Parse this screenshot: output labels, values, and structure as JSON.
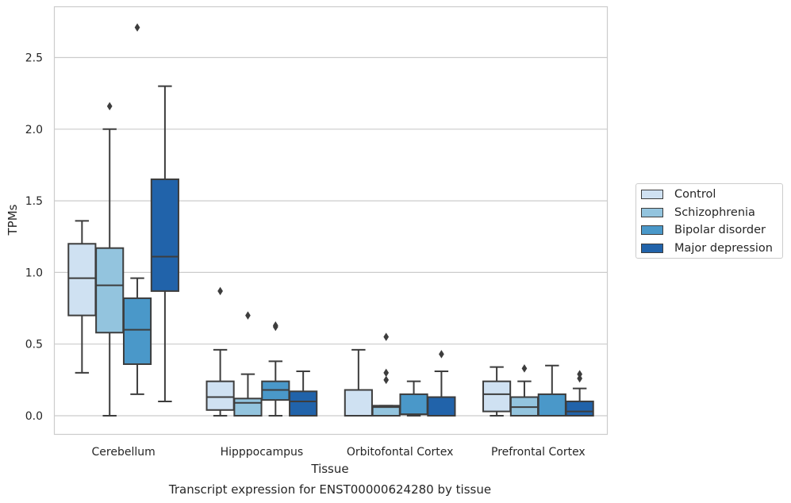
{
  "chart_data": {
    "type": "box",
    "title": "",
    "caption": "Transcript expression for ENST00000624280 by tissue",
    "xlabel": "Tissue",
    "ylabel": "TPMs",
    "ylim": [
      -0.13,
      2.86
    ],
    "yticks": [
      "0.0",
      "0.5",
      "1.0",
      "1.5",
      "2.0",
      "2.5"
    ],
    "grid": "horizontal",
    "legend_position": "right",
    "categories": [
      "Cerebellum",
      "Hipppocampus",
      "Orbitofontal Cortex",
      "Prefrontal Cortex"
    ],
    "series": [
      {
        "name": "Control",
        "color": "#cfe1f2",
        "boxes": [
          {
            "whislo": 0.3,
            "q1": 0.7,
            "med": 0.96,
            "q3": 1.2,
            "whishi": 1.36,
            "fliers": []
          },
          {
            "whislo": 0.0,
            "q1": 0.04,
            "med": 0.13,
            "q3": 0.24,
            "whishi": 0.46,
            "fliers": [
              0.87
            ]
          },
          {
            "whislo": 0.0,
            "q1": 0.0,
            "med": 0.0,
            "q3": 0.18,
            "whishi": 0.46,
            "fliers": []
          },
          {
            "whislo": 0.0,
            "q1": 0.03,
            "med": 0.15,
            "q3": 0.24,
            "whishi": 0.34,
            "fliers": []
          }
        ]
      },
      {
        "name": "Schizophrenia",
        "color": "#93c4de",
        "boxes": [
          {
            "whislo": 0.0,
            "q1": 0.58,
            "med": 0.91,
            "q3": 1.17,
            "whishi": 2.0,
            "fliers": [
              2.16
            ]
          },
          {
            "whislo": 0.0,
            "q1": 0.0,
            "med": 0.09,
            "q3": 0.12,
            "whishi": 0.29,
            "fliers": [
              0.7
            ]
          },
          {
            "whislo": 0.0,
            "q1": 0.0,
            "med": 0.06,
            "q3": 0.07,
            "whishi": 0.07,
            "fliers": [
              0.25,
              0.3,
              0.55
            ]
          },
          {
            "whislo": 0.0,
            "q1": 0.0,
            "med": 0.06,
            "q3": 0.13,
            "whishi": 0.24,
            "fliers": [
              0.33
            ]
          }
        ]
      },
      {
        "name": "Bipolar disorder",
        "color": "#4a98c9",
        "boxes": [
          {
            "whislo": 0.15,
            "q1": 0.36,
            "med": 0.6,
            "q3": 0.82,
            "whishi": 0.96,
            "fliers": [
              2.71
            ]
          },
          {
            "whislo": 0.0,
            "q1": 0.11,
            "med": 0.18,
            "q3": 0.24,
            "whishi": 0.38,
            "fliers": [
              0.62,
              0.63
            ]
          },
          {
            "whislo": 0.0,
            "q1": 0.01,
            "med": 0.01,
            "q3": 0.15,
            "whishi": 0.24,
            "fliers": []
          },
          {
            "whislo": 0.0,
            "q1": 0.0,
            "med": 0.0,
            "q3": 0.15,
            "whishi": 0.35,
            "fliers": []
          }
        ]
      },
      {
        "name": "Major depression",
        "color": "#2163aa",
        "boxes": [
          {
            "whislo": 0.1,
            "q1": 0.87,
            "med": 1.11,
            "q3": 1.65,
            "whishi": 2.3,
            "fliers": []
          },
          {
            "whislo": 0.0,
            "q1": 0.0,
            "med": 0.1,
            "q3": 0.17,
            "whishi": 0.31,
            "fliers": []
          },
          {
            "whislo": 0.0,
            "q1": 0.0,
            "med": 0.0,
            "q3": 0.13,
            "whishi": 0.31,
            "fliers": [
              0.43
            ]
          },
          {
            "whislo": 0.0,
            "q1": 0.0,
            "med": 0.03,
            "q3": 0.1,
            "whishi": 0.19,
            "fliers": [
              0.26,
              0.29
            ]
          }
        ]
      }
    ]
  }
}
